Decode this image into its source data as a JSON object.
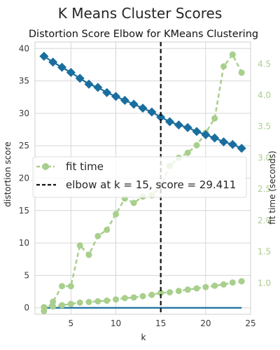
{
  "figure": {
    "suptitle": "K Means Cluster Scores",
    "title": "Distortion Score Elbow for KMeans Clustering"
  },
  "colors": {
    "distortion": "#1a6e9e",
    "fit_time": "#a8cf8c",
    "elbow": "#111111",
    "grid": "#d6d6d6"
  },
  "legend": {
    "fit_label": "fit time",
    "elbow_label": "elbow at k = 15, score = 29.411"
  },
  "chart_data": {
    "type": "line",
    "title": "Distortion Score Elbow for KMeans Clustering",
    "xlabel": "k",
    "ylabel": "distortion score",
    "y2label": "fit time (seconds)",
    "x": [
      2,
      3,
      4,
      5,
      6,
      7,
      8,
      9,
      10,
      11,
      12,
      13,
      14,
      15,
      16,
      17,
      18,
      19,
      20,
      21,
      22,
      23,
      24
    ],
    "xlim": [
      1,
      25
    ],
    "xticks": [
      5,
      10,
      15,
      20,
      25
    ],
    "ylim": [
      -1,
      41
    ],
    "yticks": [
      0,
      5,
      10,
      15,
      20,
      25,
      30,
      35,
      40
    ],
    "y2lim": [
      0.5,
      4.85
    ],
    "y2ticks": [
      1.0,
      1.5,
      2.0,
      2.5,
      3.0,
      3.5,
      4.0,
      4.5
    ],
    "series": [
      {
        "name": "distortion score",
        "axis": "left",
        "marker": "diamond",
        "values": [
          38.8,
          37.9,
          37.1,
          36.3,
          35.4,
          34.5,
          34.0,
          33.2,
          32.6,
          32.0,
          31.4,
          30.8,
          30.2,
          29.411,
          28.7,
          28.2,
          27.8,
          27.2,
          26.7,
          26.2,
          25.6,
          25.2,
          24.6
        ]
      },
      {
        "name": "fit time",
        "axis": "right",
        "marker": "circle",
        "style": "dashed",
        "values": [
          0.55,
          0.7,
          0.95,
          0.95,
          1.6,
          1.45,
          1.75,
          1.85,
          2.1,
          2.35,
          2.28,
          2.38,
          2.4,
          2.55,
          2.87,
          3.0,
          3.08,
          3.2,
          3.4,
          3.63,
          4.46,
          4.65,
          4.36
        ]
      },
      {
        "name": "",
        "axis": "left",
        "marker": "circle",
        "values": [
          0.1,
          0.2,
          0.4,
          0.6,
          0.8,
          0.9,
          1.0,
          1.1,
          1.3,
          1.5,
          1.6,
          1.8,
          2.0,
          2.3,
          2.4,
          2.6,
          2.8,
          3.0,
          3.2,
          3.4,
          3.6,
          3.9,
          4.1
        ]
      },
      {
        "name": "",
        "axis": "left",
        "marker": "none",
        "values": [
          0,
          0,
          0,
          0,
          0,
          0,
          0,
          0,
          0,
          0,
          0,
          0,
          0,
          0,
          0,
          0,
          0,
          0,
          0,
          0,
          0,
          0,
          0
        ]
      }
    ],
    "elbow": {
      "k": 15,
      "score": 29.411
    },
    "grid": true,
    "legend_position": "center-left"
  }
}
